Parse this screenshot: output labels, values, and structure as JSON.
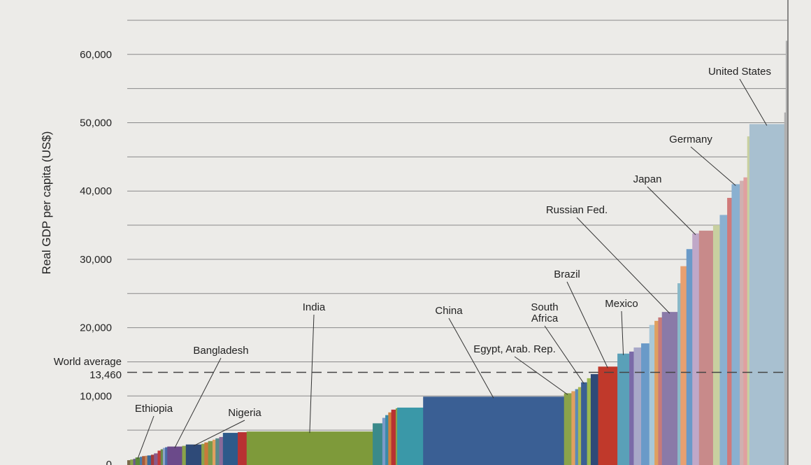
{
  "chart_data": {
    "type": "bar",
    "subtype": "variable-width bar (width proportional to population)",
    "title": "",
    "xlabel": "",
    "ylabel": "Real GDP per capita (US$)",
    "ylim": [
      0,
      66000
    ],
    "y_ticks": [
      {
        "value": 0,
        "label": "0"
      },
      {
        "value": 10000,
        "label": "10,000"
      },
      {
        "value": 20000,
        "label": "20,000"
      },
      {
        "value": 30000,
        "label": "30,000"
      },
      {
        "value": 40000,
        "label": "40,000"
      },
      {
        "value": 50000,
        "label": "50,000"
      },
      {
        "value": 60000,
        "label": "60,000"
      }
    ],
    "grid": true,
    "reference_line": {
      "label_line1": "World average",
      "label_line2": "13,460",
      "value": 13460,
      "style": "dashed"
    },
    "bars": [
      {
        "w": 4,
        "v": 600,
        "c": "#7a6a4a"
      },
      {
        "w": 4,
        "v": 700,
        "c": "#8aa34a"
      },
      {
        "w": 3,
        "v": 800,
        "c": "#6b5a8e"
      },
      {
        "w": 6,
        "v": 1000,
        "c": "#5b8a3a"
      },
      {
        "w": 3,
        "v": 1100,
        "c": "#4a7aa8"
      },
      {
        "w": 4,
        "v": 1200,
        "c": "#a85a3a"
      },
      {
        "w": 3,
        "v": 1250,
        "c": "#c88a5a"
      },
      {
        "w": 5,
        "v": 1300,
        "c": "#3a6a9a"
      },
      {
        "w": 4,
        "v": 1400,
        "c": "#a33a3a"
      },
      {
        "w": 5,
        "v": 1600,
        "c": "#8a5a8a"
      },
      {
        "w": 4,
        "v": 2000,
        "c": "#c33a3a"
      },
      {
        "w": 3,
        "v": 2200,
        "c": "#6a8a4a"
      },
      {
        "w": 3,
        "v": 2400,
        "c": "#8aa3c8"
      },
      {
        "w": 3,
        "v": 2500,
        "c": "#4a6aa8"
      },
      {
        "w": 20,
        "v": 2600,
        "c": "#6b4a8a"
      },
      {
        "w": 5,
        "v": 2700,
        "c": "#8aa34a"
      },
      {
        "w": 21,
        "v": 2900,
        "c": "#2e4a78"
      },
      {
        "w": 4,
        "v": 3000,
        "c": "#8aa34a"
      },
      {
        "w": 5,
        "v": 3200,
        "c": "#c87a3a"
      },
      {
        "w": 6,
        "v": 3400,
        "c": "#7a9a4a"
      },
      {
        "w": 4,
        "v": 3600,
        "c": "#e0a060"
      },
      {
        "w": 5,
        "v": 3800,
        "c": "#5a8a8a"
      },
      {
        "w": 5,
        "v": 4000,
        "c": "#8a6a9a"
      },
      {
        "w": 20,
        "v": 4600,
        "c": "#2e5a8a"
      },
      {
        "w": 12,
        "v": 4700,
        "c": "#b83232"
      },
      {
        "w": 170,
        "v": 4800,
        "c": "#7e9a3a"
      },
      {
        "w": 13,
        "v": 6000,
        "c": "#3a8a8a"
      },
      {
        "w": 4,
        "v": 6800,
        "c": "#7a9ac8"
      },
      {
        "w": 4,
        "v": 7200,
        "c": "#3a8aa8"
      },
      {
        "w": 4,
        "v": 7600,
        "c": "#d0803a"
      },
      {
        "w": 6,
        "v": 8000,
        "c": "#b83232"
      },
      {
        "w": 2,
        "v": 8200,
        "c": "#8aa34a"
      },
      {
        "w": 35,
        "v": 8300,
        "c": "#3a98a8"
      },
      {
        "w": 190,
        "v": 9900,
        "c": "#3a5f94"
      },
      {
        "w": 10,
        "v": 10400,
        "c": "#8aa34a"
      },
      {
        "w": 5,
        "v": 10700,
        "c": "#e0a060"
      },
      {
        "w": 4,
        "v": 11000,
        "c": "#5a8ab8"
      },
      {
        "w": 4,
        "v": 11300,
        "c": "#a8b850"
      },
      {
        "w": 8,
        "v": 12000,
        "c": "#3a5f94"
      },
      {
        "w": 5,
        "v": 12600,
        "c": "#9ab850"
      },
      {
        "w": 10,
        "v": 13200,
        "c": "#2e4a78"
      },
      {
        "w": 26,
        "v": 14300,
        "c": "#c0392b"
      },
      {
        "w": 16,
        "v": 16200,
        "c": "#5aa0b8"
      },
      {
        "w": 6,
        "v": 16500,
        "c": "#7a6aa8"
      },
      {
        "w": 10,
        "v": 17100,
        "c": "#a8a8c8"
      },
      {
        "w": 11,
        "v": 17700,
        "c": "#6a9ac8"
      },
      {
        "w": 7,
        "v": 20400,
        "c": "#a8c8d8"
      },
      {
        "w": 5,
        "v": 21000,
        "c": "#e0a060"
      },
      {
        "w": 5,
        "v": 21500,
        "c": "#c87a7a"
      },
      {
        "w": 21,
        "v": 22300,
        "c": "#8a7aa8"
      },
      {
        "w": 4,
        "v": 26500,
        "c": "#8ab8c8"
      },
      {
        "w": 8,
        "v": 29000,
        "c": "#e8a070"
      },
      {
        "w": 8,
        "v": 31500,
        "c": "#6a9ac8"
      },
      {
        "w": 9,
        "v": 33800,
        "c": "#c0a8c8"
      },
      {
        "w": 19,
        "v": 34200,
        "c": "#c88a8a"
      },
      {
        "w": 9,
        "v": 35000,
        "c": "#c8d0a0"
      },
      {
        "w": 10,
        "v": 36500,
        "c": "#8ab0d0"
      },
      {
        "w": 6,
        "v": 39000,
        "c": "#d07a7a"
      },
      {
        "w": 11,
        "v": 41000,
        "c": "#8ab0d0"
      },
      {
        "w": 5,
        "v": 41500,
        "c": "#d0b0b0"
      },
      {
        "w": 5,
        "v": 42000,
        "c": "#e0a0a0"
      },
      {
        "w": 3,
        "v": 48000,
        "c": "#c8d0a0"
      },
      {
        "w": 47,
        "v": 49800,
        "c": "#a8c0d0"
      },
      {
        "w": 2,
        "v": 51500,
        "c": "#b0b0b0"
      },
      {
        "w": 2,
        "v": 62000,
        "c": "#b0b0b0"
      }
    ],
    "annotations": [
      {
        "text": "Ethiopia",
        "bar": 3
      },
      {
        "text": "Bangladesh",
        "bar": 14
      },
      {
        "text": "Nigeria",
        "bar": 16
      },
      {
        "text": "India",
        "bar": 25
      },
      {
        "text": "China",
        "bar": 33
      },
      {
        "text": "Egypt, Arab. Rep.",
        "bar": 34
      },
      {
        "text": "South",
        "text2": "Africa",
        "bar": 38
      },
      {
        "text": "Brazil",
        "bar": 41
      },
      {
        "text": "Mexico",
        "bar": 42
      },
      {
        "text": "Russian Fed.",
        "bar": 49
      },
      {
        "text": "Japan",
        "bar": 53
      },
      {
        "text": "Germany",
        "bar": 58
      },
      {
        "text": "United States",
        "bar": 62
      }
    ]
  }
}
